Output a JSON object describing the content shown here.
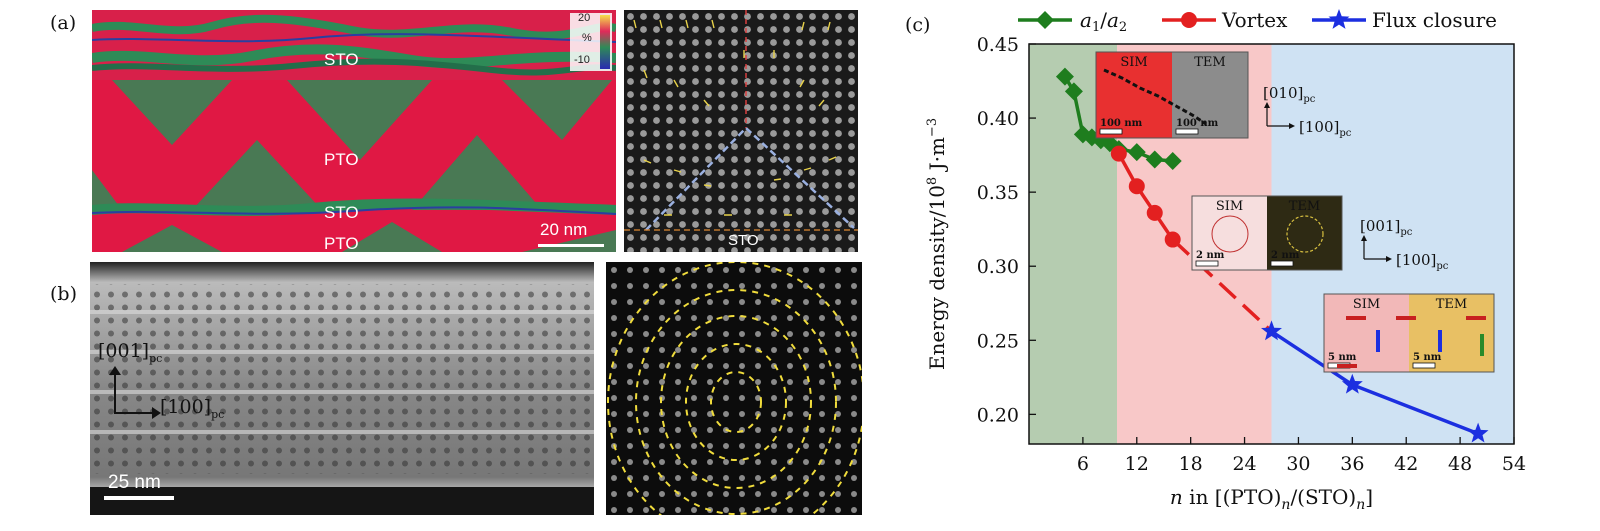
{
  "panels": {
    "a": "(a)",
    "b": "(b)",
    "c": "(c)"
  },
  "panel_a": {
    "layers": [
      "STO",
      "PTO",
      "STO",
      "PTO"
    ],
    "colorbar": {
      "top": "20",
      "unit": "%",
      "bottom": "-10"
    },
    "scalebar": "20 nm",
    "right_label": "STO"
  },
  "panel_b": {
    "axis_y": "[001]",
    "axis_y_sub": "pc",
    "axis_x": "[100]",
    "axis_x_sub": "pc",
    "scalebar": "25 nm"
  },
  "colors": {
    "a1a2": "#1e7d1e",
    "vortex": "#e32020",
    "flux": "#1c2fe0",
    "region_green": "#b5ccb0",
    "region_red": "#f8c8c8",
    "region_blue": "#cfe2f3"
  },
  "chart_data": {
    "type": "line",
    "xlabel": "n in [(PTO)n/(STO)n]",
    "ylabel": "Energy density/10^8 J·m^-3",
    "xlim": [
      0,
      54
    ],
    "ylim": [
      0.18,
      0.45
    ],
    "xticks": [
      6,
      12,
      18,
      24,
      30,
      36,
      42,
      48,
      54
    ],
    "yticks": [
      0.2,
      0.25,
      0.3,
      0.35,
      0.4,
      0.45
    ],
    "regions": [
      {
        "name": "a1/a2",
        "from": 0,
        "to": 9.8
      },
      {
        "name": "vortex",
        "from": 9.8,
        "to": 27
      },
      {
        "name": "flux",
        "from": 27,
        "to": 54
      }
    ],
    "series": [
      {
        "name": "a1/a2",
        "marker": "diamond",
        "x": [
          4,
          5,
          6,
          7,
          8,
          9,
          10,
          12,
          14,
          16
        ],
        "y": [
          0.428,
          0.418,
          0.389,
          0.387,
          0.385,
          0.383,
          0.379,
          0.377,
          0.372,
          0.371
        ]
      },
      {
        "name": "Vortex",
        "marker": "circle",
        "x": [
          10,
          12,
          14,
          16
        ],
        "y": [
          0.376,
          0.354,
          0.336,
          0.318
        ]
      },
      {
        "name": "Vortex extrapolation",
        "marker": "none",
        "dashed": true,
        "x": [
          16,
          27
        ],
        "y": [
          0.318,
          0.256
        ]
      },
      {
        "name": "Flux closure",
        "marker": "star",
        "x": [
          27,
          36,
          50
        ],
        "y": [
          0.256,
          0.22,
          0.187
        ]
      }
    ],
    "legend": [
      "a1/a2",
      "Vortex",
      "Flux closure"
    ],
    "inset_labels": {
      "sim": "SIM",
      "tem": "TEM",
      "nm100": "100 nm",
      "nm2": "2 nm",
      "nm5": "5 nm"
    },
    "axis_labels": {
      "d010": "[010]",
      "d100": "[100]",
      "d001": "[001]",
      "pc": "pc"
    }
  }
}
